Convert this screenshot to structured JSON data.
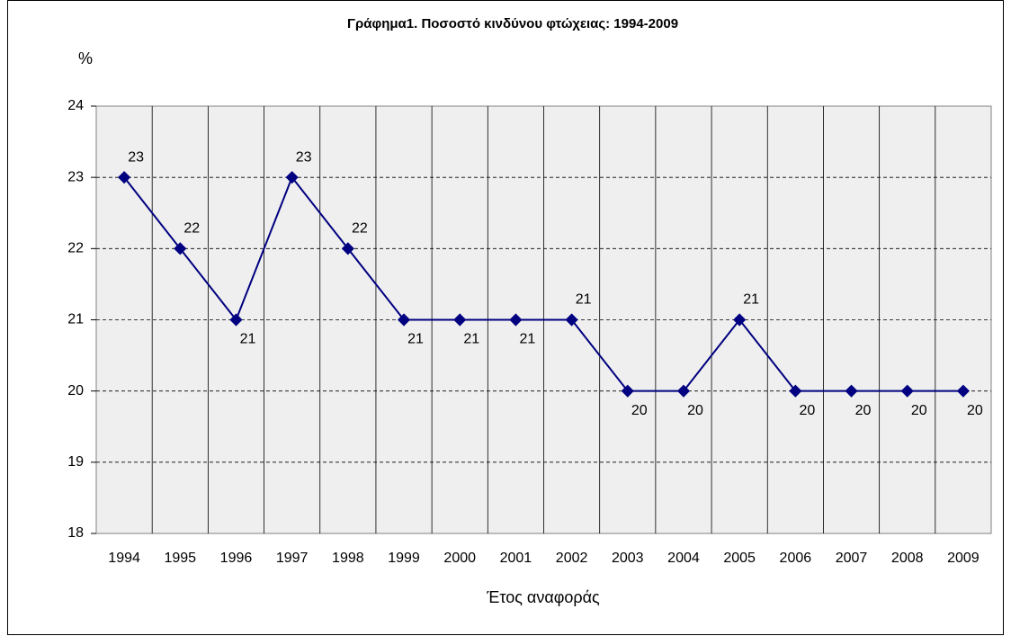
{
  "chart_data": {
    "type": "line",
    "title": "Γράφημα1. Ποσοστό κινδύνου φτώχειας: 1994-2009",
    "y_axis_label": "%",
    "x_axis_label": "Έτος αναφοράς",
    "categories": [
      "1994",
      "1995",
      "1996",
      "1997",
      "1998",
      "1999",
      "2000",
      "2001",
      "2002",
      "2003",
      "2004",
      "2005",
      "2006",
      "2007",
      "2008",
      "2009"
    ],
    "series": [
      {
        "name": "Ποσοστό κινδύνου φτώχειας",
        "color": "#000080",
        "values": [
          23,
          22,
          21,
          23,
          22,
          21,
          21,
          21,
          21,
          20,
          20,
          21,
          20,
          20,
          20,
          20
        ]
      }
    ],
    "ylim": [
      18,
      24
    ],
    "yticks": [
      18,
      19,
      20,
      21,
      22,
      23,
      24
    ],
    "grid": true
  }
}
